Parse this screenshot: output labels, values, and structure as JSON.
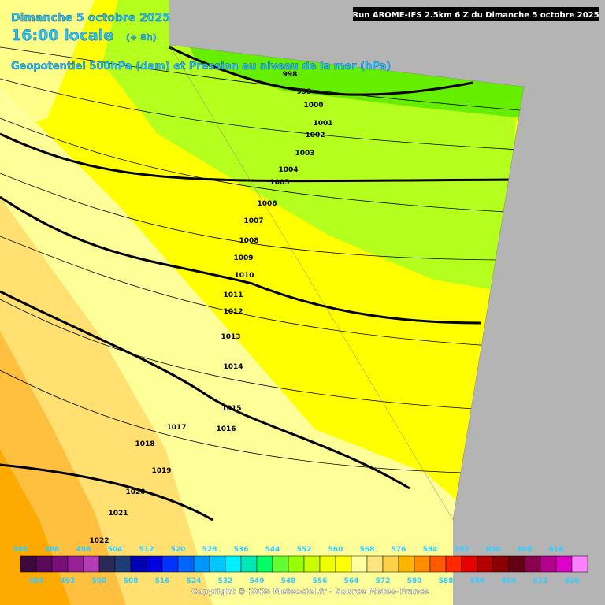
{
  "header": {
    "date": "Dimanche 5 octobre 2025",
    "time": "16:00 locale",
    "offset": "(+ 8h)",
    "subtitle": "Geopotentiel 500hPa (dam) et Pression au niveau de la mer (hPa)",
    "run": "Run AROME-IFS 2.5km 6 Z du Dimanche 5 octobre 2025"
  },
  "isobars": [
    998,
    999,
    1000,
    1001,
    1002,
    1003,
    1004,
    1005,
    1006,
    1007,
    1008,
    1009,
    1010,
    1011,
    1012,
    1013,
    1014,
    1015,
    1016,
    1017,
    1018,
    1019,
    1020,
    1021,
    1022
  ],
  "colorbar": {
    "values": [
      480,
      484,
      488,
      492,
      496,
      500,
      504,
      508,
      512,
      516,
      520,
      524,
      528,
      532,
      536,
      540,
      544,
      548,
      552,
      556,
      560,
      564,
      568,
      572,
      576,
      580,
      584,
      588,
      592,
      596,
      600,
      604,
      608,
      612,
      616,
      620
    ],
    "colors": [
      "#3c0a3c",
      "#5a0a5a",
      "#780f78",
      "#962096",
      "#b43cb4",
      "#2a2a5a",
      "#1e3c78",
      "#0000b4",
      "#0000dc",
      "#0032ff",
      "#0064ff",
      "#0096ff",
      "#00c8ff",
      "#00f0ff",
      "#00e6b4",
      "#00ff64",
      "#64ff32",
      "#96ff00",
      "#c8ff00",
      "#f0ff00",
      "#ffff00",
      "#ffffa0",
      "#ffe680",
      "#ffd24a",
      "#ffb400",
      "#ff8c00",
      "#ff5a00",
      "#ff2800",
      "#e60000",
      "#b40000",
      "#8c0000",
      "#640014",
      "#8c0050",
      "#b4008c",
      "#dc00c8",
      "#ff80ff"
    ]
  },
  "copyright": "Copyright © 2025 Meteociel.fr - Source Meteo-France"
}
